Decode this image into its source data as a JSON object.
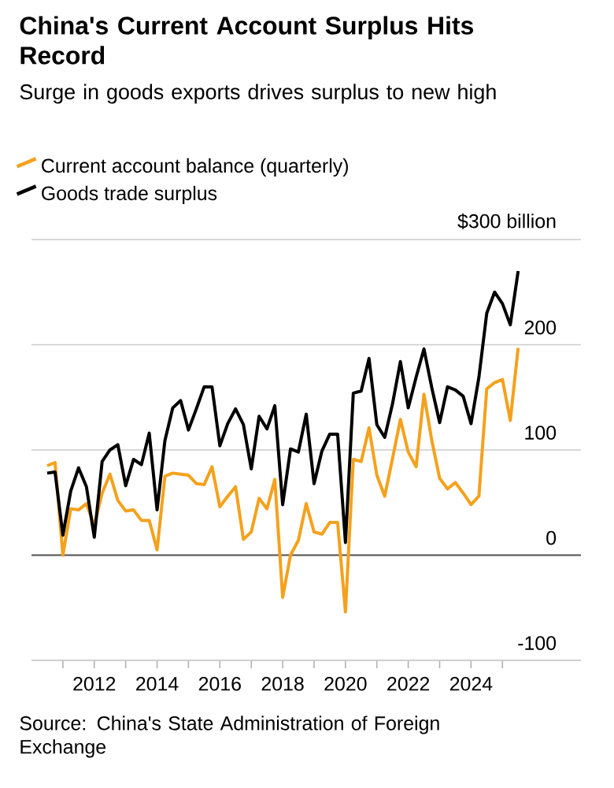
{
  "chart_data": {
    "type": "line",
    "title": "China's Current Account Surplus Hits Record",
    "subtitle": "Surge in goods exports drives surplus to new high",
    "x": [
      "2010-07",
      "2010-10",
      "2011-01",
      "2011-04",
      "2011-07",
      "2011-10",
      "2012-01",
      "2012-04",
      "2012-07",
      "2012-10",
      "2013-01",
      "2013-04",
      "2013-07",
      "2013-10",
      "2014-01",
      "2014-04",
      "2014-07",
      "2014-10",
      "2015-01",
      "2015-04",
      "2015-07",
      "2015-10",
      "2016-01",
      "2016-04",
      "2016-07",
      "2016-10",
      "2017-01",
      "2017-04",
      "2017-07",
      "2017-10",
      "2018-01",
      "2018-04",
      "2018-07",
      "2018-10",
      "2019-01",
      "2019-04",
      "2019-07",
      "2019-10",
      "2020-01",
      "2020-04",
      "2020-07",
      "2020-10",
      "2021-01",
      "2021-04",
      "2021-07",
      "2021-10",
      "2022-01",
      "2022-04",
      "2022-07",
      "2022-10",
      "2023-01",
      "2023-04",
      "2023-07",
      "2023-10",
      "2024-01",
      "2024-04",
      "2024-07",
      "2024-10",
      "2025-01",
      "2025-04",
      "2025-07"
    ],
    "series": [
      {
        "name": "Current account balance (quarterly)",
        "color": "#f5a11c",
        "values": [
          85,
          88,
          0,
          44,
          43,
          49,
          28,
          59,
          77,
          52,
          42,
          43,
          33,
          33,
          5,
          75,
          78,
          77,
          76,
          68,
          67,
          84,
          46,
          56,
          65,
          15,
          22,
          54,
          44,
          72,
          -40,
          0,
          14,
          49,
          22,
          20,
          31,
          31,
          -54,
          91,
          89,
          121,
          76,
          56,
          92,
          129,
          98,
          84,
          153,
          109,
          73,
          63,
          69,
          59,
          48,
          56,
          158,
          164,
          167,
          128,
          197
        ]
      },
      {
        "name": "Goods trade surplus",
        "color": "#000000",
        "values": [
          78,
          79,
          19,
          61,
          83,
          65,
          17,
          89,
          100,
          105,
          66,
          91,
          86,
          116,
          43,
          109,
          140,
          147,
          119,
          139,
          160,
          160,
          104,
          125,
          139,
          124,
          82,
          132,
          120,
          142,
          48,
          101,
          98,
          134,
          68,
          99,
          115,
          115,
          12,
          154,
          156,
          187,
          124,
          112,
          144,
          184,
          140,
          169,
          196,
          159,
          126,
          160,
          157,
          151,
          125,
          169,
          230,
          250,
          239,
          219,
          270
        ]
      }
    ],
    "xlim": [
      "2010-01",
      "2027-07"
    ],
    "ylim": [
      -100,
      300
    ],
    "xticks": [
      {
        "value": "2011",
        "label": null
      },
      "2012",
      {
        "value": "2013",
        "label": null
      },
      "2014",
      {
        "value": "2015",
        "label": null
      },
      "2016",
      {
        "value": "2017",
        "label": null
      },
      "2018",
      {
        "value": "2019",
        "label": null
      },
      "2020",
      {
        "value": "2021",
        "label": null
      },
      "2022",
      {
        "value": "2023",
        "label": null
      },
      "2024",
      {
        "value": "2025",
        "label": null
      }
    ],
    "yticks": [
      -100,
      0,
      100,
      200,
      {
        "value": 300,
        "label": "$300 billion"
      }
    ],
    "grid": "y",
    "legend": "top left",
    "ref_lines": [
      {
        "axis": "y",
        "value": 0,
        "color": "#555555"
      }
    ],
    "annotations": [
      "Source: China's State Administration of Foreign Exchange"
    ]
  }
}
